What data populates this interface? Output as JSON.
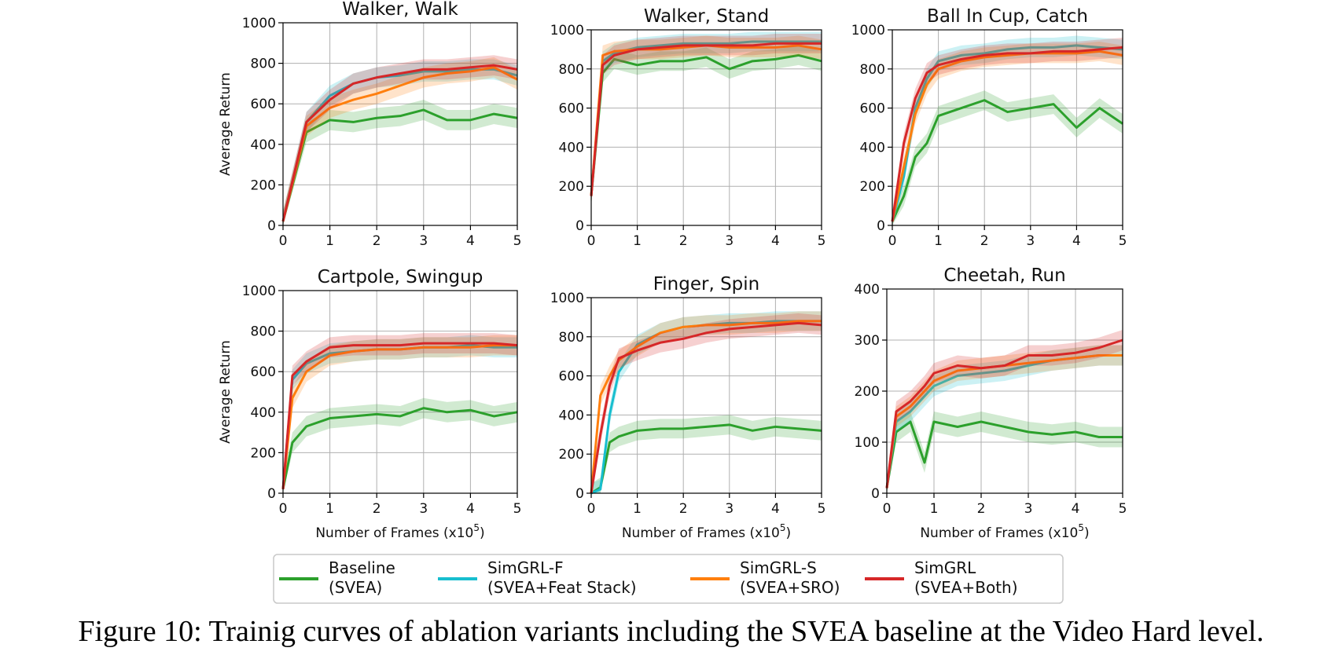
{
  "caption": "Figure 10: Trainig curves of ablation variants including the SVEA baseline at the Video Hard level.",
  "legend": {
    "entries": [
      {
        "line1": "Baseline",
        "line2": "(SVEA)",
        "color": "#2ca02c"
      },
      {
        "line1": "SimGRL-F",
        "line2": "(SVEA+Feat Stack)",
        "color": "#17becf"
      },
      {
        "line1": "SimGRL-S",
        "line2": "(SVEA+SRO)",
        "color": "#ff7f0e"
      },
      {
        "line1": "SimGRL",
        "line2": "(SVEA+Both)",
        "color": "#d62728"
      }
    ]
  },
  "chart_data": [
    {
      "type": "line",
      "title": "Walker, Walk",
      "xlabel": "",
      "ylabel": "Average Return",
      "xlim": [
        0,
        5
      ],
      "ylim": [
        0,
        1000
      ],
      "yticks": [
        0,
        200,
        400,
        600,
        800,
        1000
      ],
      "xticks": [
        0,
        1,
        2,
        3,
        4,
        5
      ],
      "grid": true,
      "x": [
        0,
        0.5,
        1,
        1.5,
        2,
        2.5,
        3,
        3.5,
        4,
        4.5,
        5
      ],
      "series": [
        {
          "name": "Baseline (SVEA)",
          "color": "#2ca02c",
          "values": [
            20,
            460,
            520,
            510,
            530,
            540,
            570,
            520,
            520,
            550,
            530
          ]
        },
        {
          "name": "SimGRL-F (SVEA+Feat Stack)",
          "color": "#17becf",
          "values": [
            20,
            510,
            640,
            700,
            730,
            740,
            760,
            760,
            770,
            770,
            740
          ]
        },
        {
          "name": "SimGRL-S (SVEA+SRO)",
          "color": "#ff7f0e",
          "values": [
            20,
            490,
            580,
            620,
            650,
            690,
            730,
            750,
            760,
            780,
            720
          ]
        },
        {
          "name": "SimGRL (SVEA+Both)",
          "color": "#d62728",
          "values": [
            20,
            510,
            620,
            700,
            730,
            750,
            770,
            770,
            780,
            790,
            770
          ]
        }
      ]
    },
    {
      "type": "line",
      "title": "Walker, Stand",
      "xlabel": "",
      "ylabel": "",
      "xlim": [
        0,
        5
      ],
      "ylim": [
        0,
        1000
      ],
      "yticks": [
        0,
        200,
        400,
        600,
        800,
        1000
      ],
      "xticks": [
        0,
        1,
        2,
        3,
        4,
        5
      ],
      "grid": true,
      "x": [
        0,
        0.25,
        0.5,
        1,
        1.5,
        2,
        2.5,
        3,
        3.5,
        4,
        4.5,
        5
      ],
      "series": [
        {
          "name": "Baseline (SVEA)",
          "color": "#2ca02c",
          "values": [
            150,
            780,
            850,
            820,
            840,
            840,
            860,
            800,
            840,
            850,
            870,
            840
          ]
        },
        {
          "name": "SimGRL-F (SVEA+Feat Stack)",
          "color": "#17becf",
          "values": [
            150,
            840,
            880,
            910,
            920,
            930,
            930,
            930,
            940,
            940,
            940,
            940
          ]
        },
        {
          "name": "SimGRL-S (SVEA+SRO)",
          "color": "#ff7f0e",
          "values": [
            150,
            870,
            890,
            900,
            900,
            910,
            920,
            910,
            910,
            910,
            920,
            900
          ]
        },
        {
          "name": "SimGRL (SVEA+Both)",
          "color": "#d62728",
          "values": [
            150,
            820,
            870,
            900,
            910,
            920,
            920,
            920,
            920,
            930,
            930,
            930
          ]
        }
      ]
    },
    {
      "type": "line",
      "title": "Ball In Cup, Catch",
      "xlabel": "",
      "ylabel": "",
      "xlim": [
        0,
        5
      ],
      "ylim": [
        0,
        1000
      ],
      "yticks": [
        0,
        200,
        400,
        600,
        800,
        1000
      ],
      "xticks": [
        0,
        1,
        2,
        3,
        4,
        5
      ],
      "grid": true,
      "x": [
        0,
        0.25,
        0.5,
        0.75,
        1,
        1.5,
        2,
        2.5,
        3,
        3.5,
        4,
        4.5,
        5
      ],
      "series": [
        {
          "name": "Baseline (SVEA)",
          "color": "#2ca02c",
          "values": [
            20,
            150,
            350,
            420,
            560,
            600,
            640,
            580,
            600,
            620,
            500,
            600,
            520
          ]
        },
        {
          "name": "SimGRL-F (SVEA+Feat Stack)",
          "color": "#17becf",
          "values": [
            20,
            250,
            600,
            750,
            840,
            870,
            880,
            900,
            910,
            910,
            920,
            910,
            900
          ]
        },
        {
          "name": "SimGRL-S (SVEA+SRO)",
          "color": "#ff7f0e",
          "values": [
            20,
            300,
            570,
            720,
            800,
            840,
            860,
            870,
            880,
            880,
            880,
            890,
            870
          ]
        },
        {
          "name": "SimGRL (SVEA+Both)",
          "color": "#d62728",
          "values": [
            20,
            420,
            650,
            780,
            820,
            850,
            870,
            880,
            880,
            890,
            890,
            900,
            910
          ]
        }
      ]
    },
    {
      "type": "line",
      "title": "Cartpole, Swingup",
      "xlabel": "Number of Frames (x10^5)",
      "ylabel": "Average Return",
      "xlim": [
        0,
        5
      ],
      "ylim": [
        0,
        1000
      ],
      "yticks": [
        0,
        200,
        400,
        600,
        800,
        1000
      ],
      "xticks": [
        0,
        1,
        2,
        3,
        4,
        5
      ],
      "grid": true,
      "x": [
        0,
        0.2,
        0.5,
        1,
        1.5,
        2,
        2.5,
        3,
        3.5,
        4,
        4.5,
        5
      ],
      "series": [
        {
          "name": "Baseline (SVEA)",
          "color": "#2ca02c",
          "values": [
            20,
            250,
            330,
            370,
            380,
            390,
            380,
            420,
            400,
            410,
            380,
            400
          ]
        },
        {
          "name": "SimGRL-F (SVEA+Feat Stack)",
          "color": "#17becf",
          "values": [
            20,
            560,
            640,
            690,
            700,
            710,
            710,
            720,
            720,
            730,
            720,
            720
          ]
        },
        {
          "name": "SimGRL-S (SVEA+SRO)",
          "color": "#ff7f0e",
          "values": [
            20,
            470,
            600,
            680,
            700,
            710,
            710,
            720,
            720,
            720,
            730,
            730
          ]
        },
        {
          "name": "SimGRL (SVEA+Both)",
          "color": "#d62728",
          "values": [
            20,
            580,
            650,
            720,
            730,
            730,
            730,
            740,
            740,
            740,
            740,
            730
          ]
        }
      ]
    },
    {
      "type": "line",
      "title": "Finger, Spin",
      "xlabel": "Number of Frames (x10^5)",
      "ylabel": "",
      "xlim": [
        0,
        5
      ],
      "ylim": [
        0,
        1000
      ],
      "yticks": [
        0,
        200,
        400,
        600,
        800,
        1000
      ],
      "xticks": [
        0,
        1,
        2,
        3,
        4,
        5
      ],
      "grid": true,
      "x": [
        0,
        0.2,
        0.4,
        0.6,
        1,
        1.5,
        2,
        2.5,
        3,
        3.5,
        4,
        4.5,
        5
      ],
      "series": [
        {
          "name": "Baseline (SVEA)",
          "color": "#2ca02c",
          "values": [
            0,
            30,
            260,
            290,
            320,
            330,
            330,
            340,
            350,
            320,
            340,
            330,
            320
          ]
        },
        {
          "name": "SimGRL-F (SVEA+Feat Stack)",
          "color": "#17becf",
          "values": [
            0,
            20,
            400,
            620,
            760,
            820,
            850,
            860,
            870,
            870,
            880,
            880,
            880
          ]
        },
        {
          "name": "SimGRL-S (SVEA+SRO)",
          "color": "#ff7f0e",
          "values": [
            0,
            500,
            600,
            680,
            750,
            820,
            850,
            860,
            860,
            870,
            870,
            880,
            880
          ]
        },
        {
          "name": "SimGRL (SVEA+Both)",
          "color": "#d62728",
          "values": [
            0,
            300,
            550,
            690,
            730,
            770,
            790,
            820,
            840,
            850,
            860,
            870,
            860
          ]
        }
      ]
    },
    {
      "type": "line",
      "title": "Cheetah, Run",
      "xlabel": "Number of Frames (x10^5)",
      "ylabel": "",
      "xlim": [
        0,
        5
      ],
      "ylim": [
        0,
        400
      ],
      "yticks": [
        0,
        100,
        200,
        300,
        400
      ],
      "xticks": [
        0,
        1,
        2,
        3,
        4,
        5
      ],
      "grid": true,
      "x": [
        0,
        0.2,
        0.5,
        0.8,
        1,
        1.5,
        2,
        2.5,
        3,
        3.5,
        4,
        4.5,
        5
      ],
      "series": [
        {
          "name": "Baseline (SVEA)",
          "color": "#2ca02c",
          "values": [
            10,
            120,
            140,
            60,
            140,
            130,
            140,
            130,
            120,
            115,
            120,
            110,
            110
          ]
        },
        {
          "name": "SimGRL-F (SVEA+Feat Stack)",
          "color": "#17becf",
          "values": [
            10,
            140,
            160,
            190,
            210,
            230,
            235,
            240,
            250,
            260,
            265,
            270,
            270
          ]
        },
        {
          "name": "SimGRL-S (SVEA+SRO)",
          "color": "#ff7f0e",
          "values": [
            10,
            150,
            170,
            200,
            220,
            240,
            245,
            250,
            255,
            260,
            265,
            270,
            270
          ]
        },
        {
          "name": "SimGRL (SVEA+Both)",
          "color": "#d62728",
          "values": [
            10,
            160,
            180,
            210,
            235,
            250,
            245,
            250,
            270,
            270,
            275,
            285,
            300
          ]
        }
      ]
    }
  ]
}
